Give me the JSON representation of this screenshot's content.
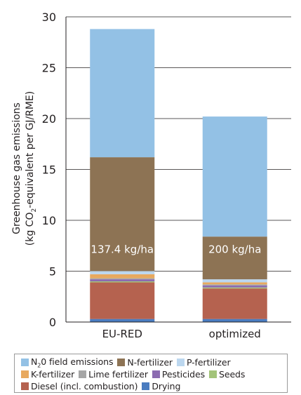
{
  "chart_data": {
    "type": "bar",
    "stacked": true,
    "categories": [
      "EU-RED",
      "optimized"
    ],
    "ylabel_line1": "Greenhouse gas emissions",
    "ylabel_line2_pre": "(kg CO",
    "ylabel_line2_sub": "2",
    "ylabel_line2_post": "-equivalent per GJ/RME)",
    "ylim": [
      0,
      30
    ],
    "yticks": [
      "0",
      "5",
      "10",
      "15",
      "20",
      "25",
      "30"
    ],
    "grid": true,
    "series": [
      {
        "name": "Drying",
        "color": "#4a7cc0",
        "values": [
          0.3,
          0.3
        ]
      },
      {
        "name": "Diesel (incl. combustion)",
        "color": "#b5624f",
        "values": [
          3.6,
          3.0
        ]
      },
      {
        "name": "Seeds",
        "color": "#a3c47a",
        "values": [
          0.1,
          0.1
        ]
      },
      {
        "name": "Pesticides",
        "color": "#8c6bb1",
        "values": [
          0.2,
          0.2
        ]
      },
      {
        "name": "Lime fertilizer",
        "color": "#a6a6a6",
        "values": [
          0.1,
          0.1
        ]
      },
      {
        "name": "K-fertilizer",
        "color": "#e8a95f",
        "values": [
          0.4,
          0.2
        ]
      },
      {
        "name": "P-fertilizer",
        "color": "#bcd7ef",
        "values": [
          0.3,
          0.3
        ]
      },
      {
        "name": "N-fertilizer",
        "color": "#8d7354",
        "values": [
          11.2,
          4.2
        ]
      },
      {
        "name": "N20 field emissions",
        "color": "#93c1e5",
        "values": [
          12.6,
          11.8
        ]
      }
    ],
    "annotations": [
      "137.4 kg/ha",
      "200 kg/ha"
    ]
  },
  "legend": {
    "rows": [
      [
        {
          "pre": "N",
          "sub": "2",
          "post": "0 field emissions",
          "color": "#93c1e5"
        },
        {
          "pre": "N-fertilizer",
          "color": "#8d7354"
        },
        {
          "pre": "P-fertilizer",
          "color": "#bcd7ef"
        }
      ],
      [
        {
          "pre": "K-fertilizer",
          "color": "#e8a95f"
        },
        {
          "pre": "Lime fertilizer",
          "color": "#a6a6a6"
        },
        {
          "pre": "Pesticides",
          "color": "#8c6bb1"
        },
        {
          "pre": "Seeds",
          "color": "#a3c47a"
        }
      ],
      [
        {
          "pre": "Diesel (incl. combustion)",
          "color": "#b5624f"
        },
        {
          "pre": "Drying",
          "color": "#4a7cc0"
        }
      ]
    ]
  }
}
